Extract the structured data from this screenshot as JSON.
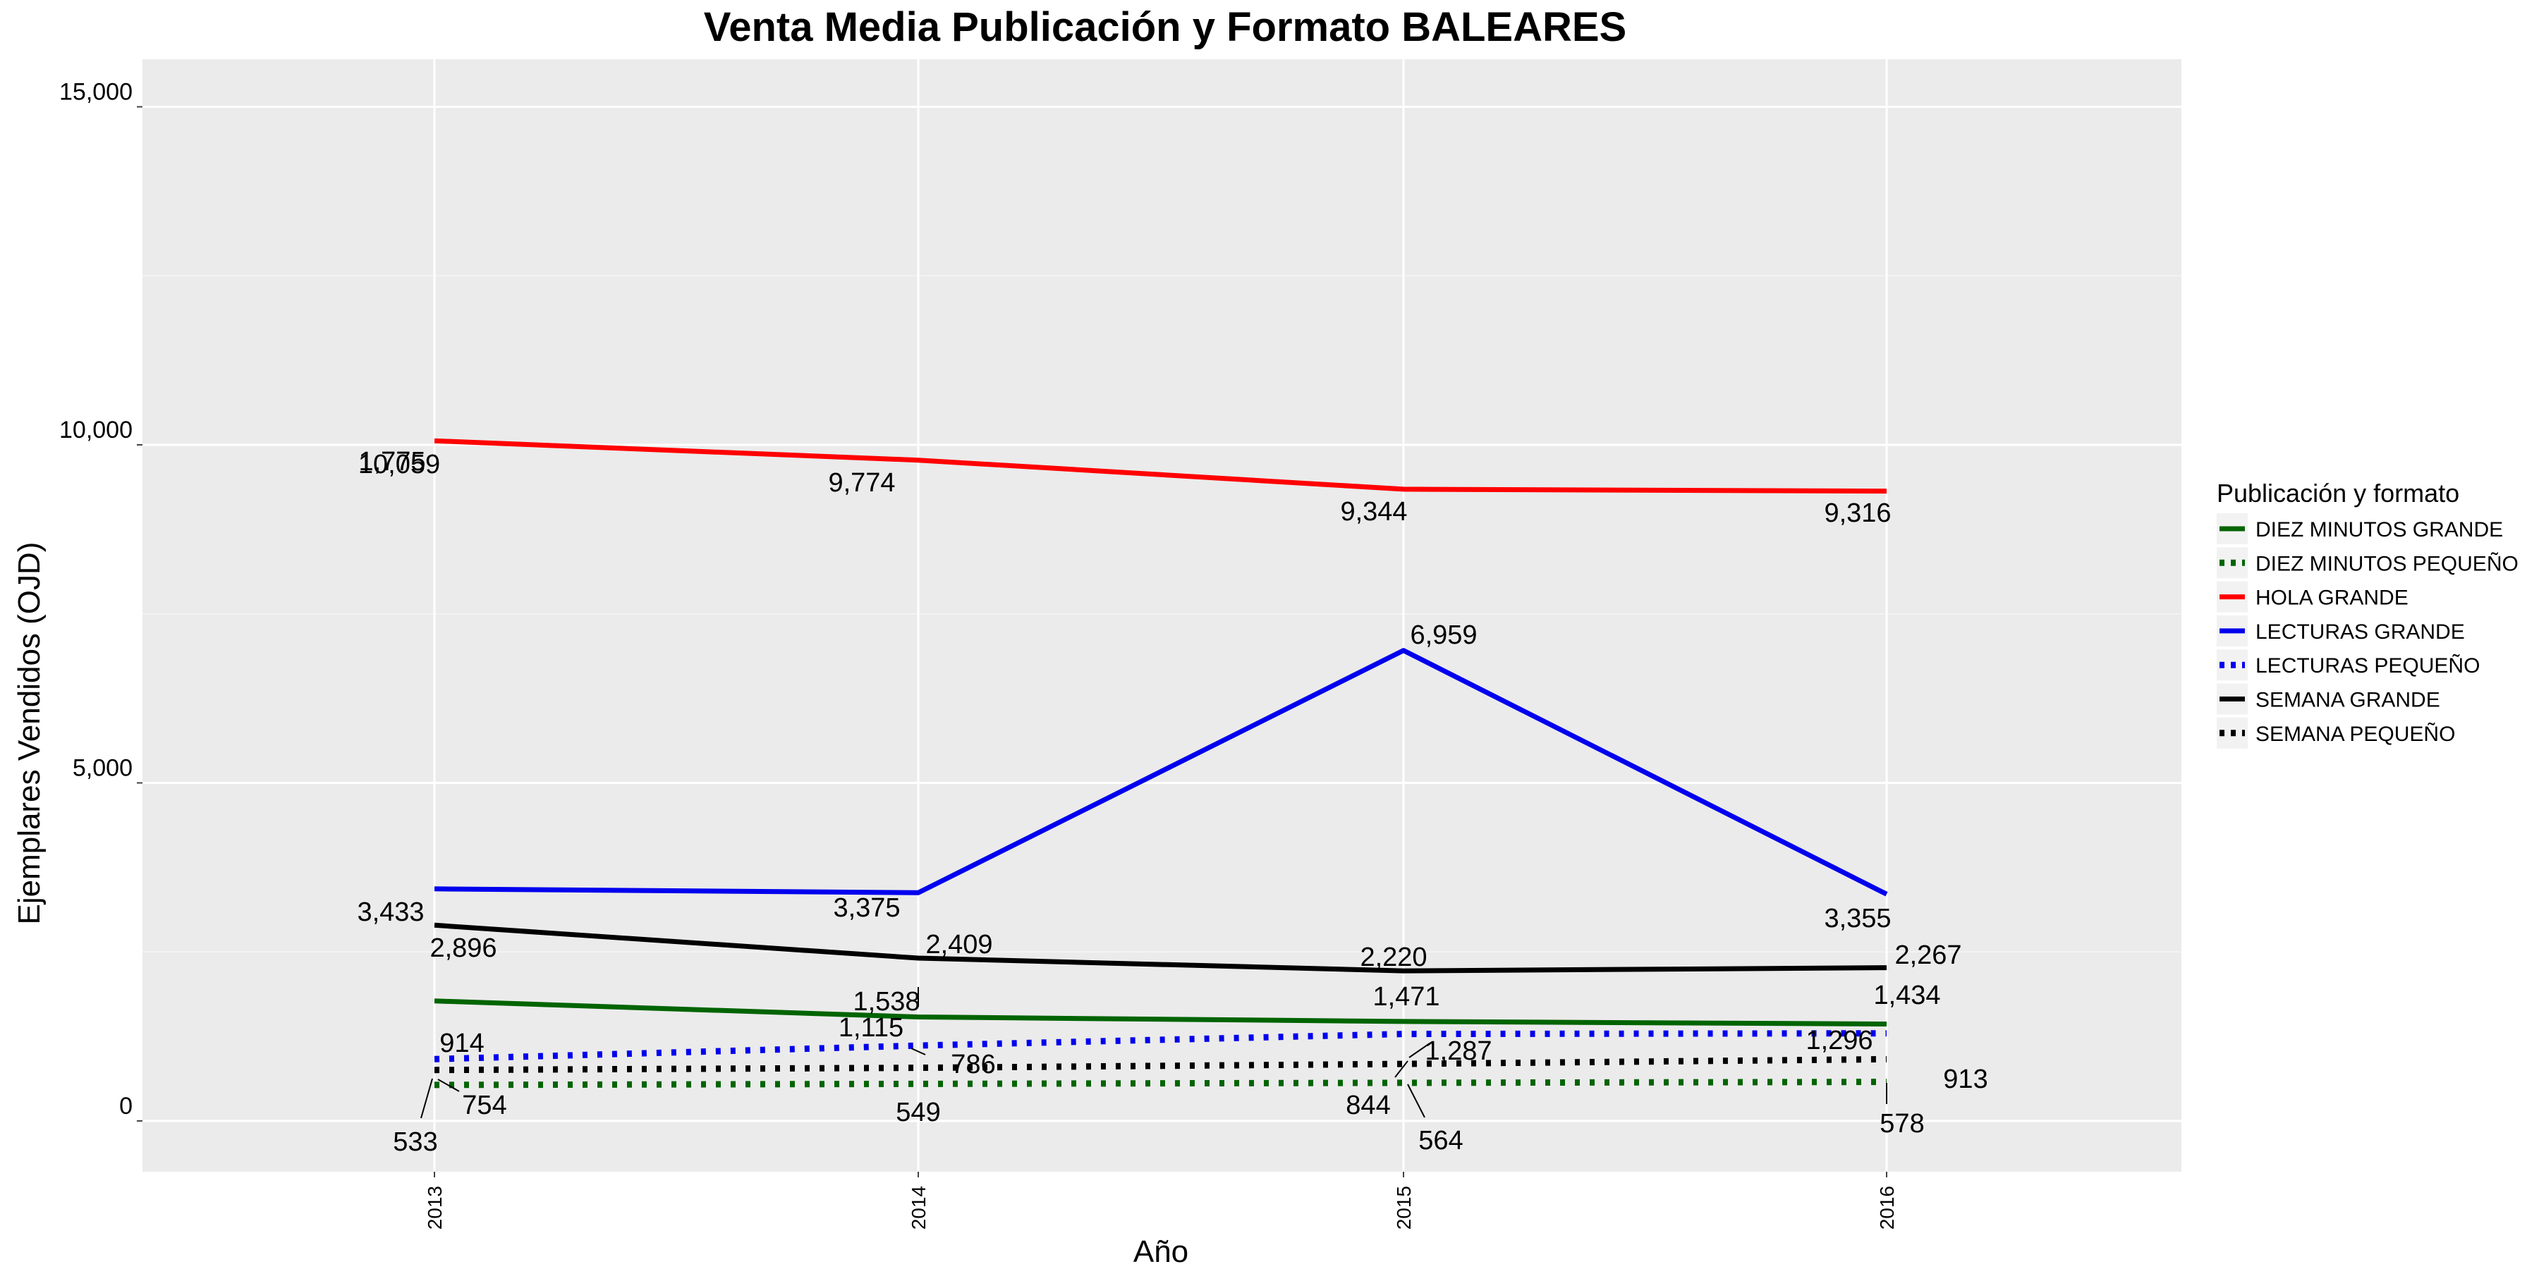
{
  "chart_data": {
    "type": "line",
    "title": "Venta Media Publicación y Formato  BALEARES",
    "xlabel": "Año",
    "ylabel": "Ejemplares Vendidos (OJD)",
    "x": [
      "2013",
      "2014",
      "2015",
      "2016"
    ],
    "ylim": [
      -700,
      15800
    ],
    "yticks": [
      0,
      5000,
      10000,
      15000
    ],
    "ytick_labels": [
      "0",
      "5,000",
      "10,000",
      "15,000"
    ],
    "grid": true,
    "legend_title": "Publicación y formato",
    "legend_position": "right",
    "series": [
      {
        "name": "DIEZ MINUTOS GRANDE",
        "color": "#006400",
        "dashed": false,
        "values": [
          1775,
          1538,
          1471,
          1434
        ],
        "labels": [
          "1,775",
          "1,538",
          "1,471",
          "1,434"
        ]
      },
      {
        "name": "DIEZ MINUTOS PEQUEÑO",
        "color": "#006400",
        "dashed": true,
        "values": [
          533,
          549,
          564,
          578
        ],
        "labels": [
          "533",
          "549",
          "564",
          "578"
        ]
      },
      {
        "name": "HOLA GRANDE",
        "color": "#ff0000",
        "dashed": false,
        "values": [
          10059,
          9774,
          9344,
          9316
        ],
        "labels": [
          "10,059",
          "9,774",
          "9,344",
          "9,316"
        ]
      },
      {
        "name": "LECTURAS GRANDE",
        "color": "#0000ee",
        "dashed": false,
        "values": [
          3433,
          3375,
          6959,
          3355
        ],
        "labels": [
          "3,433",
          "3,375",
          "6,959",
          "3,355"
        ]
      },
      {
        "name": "LECTURAS PEQUEÑO",
        "color": "#0000ee",
        "dashed": true,
        "values": [
          914,
          1115,
          1287,
          1296
        ],
        "labels": [
          "914",
          "1,115",
          "1,287",
          "1,296"
        ]
      },
      {
        "name": "SEMANA GRANDE",
        "color": "#000000",
        "dashed": false,
        "values": [
          2896,
          2409,
          2220,
          2267
        ],
        "labels": [
          "2,896",
          "2,409",
          "2,220",
          "2,267"
        ]
      },
      {
        "name": "SEMANA PEQUEÑO",
        "color": "#000000",
        "dashed": true,
        "values": [
          754,
          786,
          844,
          913
        ],
        "labels": [
          "754",
          "786",
          "844",
          "913"
        ]
      }
    ]
  }
}
